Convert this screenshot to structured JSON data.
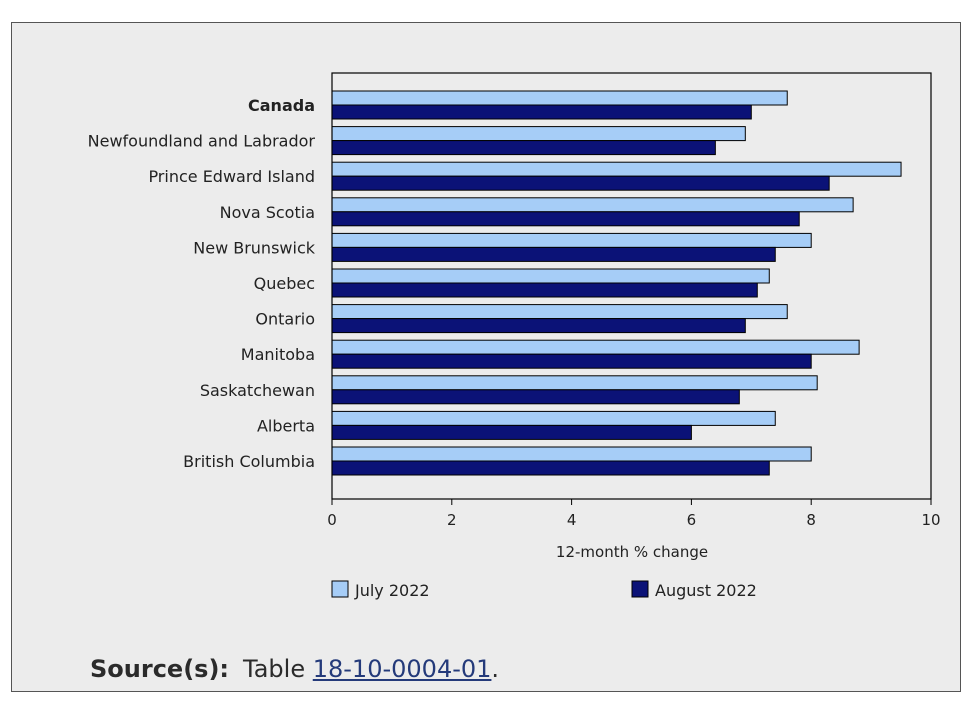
{
  "chart_data": {
    "type": "bar",
    "orientation": "horizontal",
    "categories": [
      "Canada",
      "Newfoundland and Labrador",
      "Prince Edward Island",
      "Nova Scotia",
      "New Brunswick",
      "Quebec",
      "Ontario",
      "Manitoba",
      "Saskatchewan",
      "Alberta",
      "British Columbia"
    ],
    "emphasized_category": "Canada",
    "series": [
      {
        "name": "July 2022",
        "color": "#a6cdf7",
        "values": [
          7.6,
          6.9,
          9.5,
          8.7,
          8.0,
          7.3,
          7.6,
          8.8,
          8.1,
          7.4,
          8.0
        ]
      },
      {
        "name": "August 2022",
        "color": "#0b1277",
        "values": [
          7.0,
          6.4,
          8.3,
          7.8,
          7.4,
          7.1,
          6.9,
          8.0,
          6.8,
          6.0,
          7.3
        ]
      }
    ],
    "xlabel": "12-month % change",
    "xlim": [
      0,
      10
    ],
    "xticks": [
      0,
      2,
      4,
      6,
      8,
      10
    ],
    "grid": false,
    "legend": "bottom"
  },
  "source": {
    "label": "Source(s):",
    "prefix": "Table",
    "link_text": "18-10-0004-01",
    "suffix": "."
  }
}
